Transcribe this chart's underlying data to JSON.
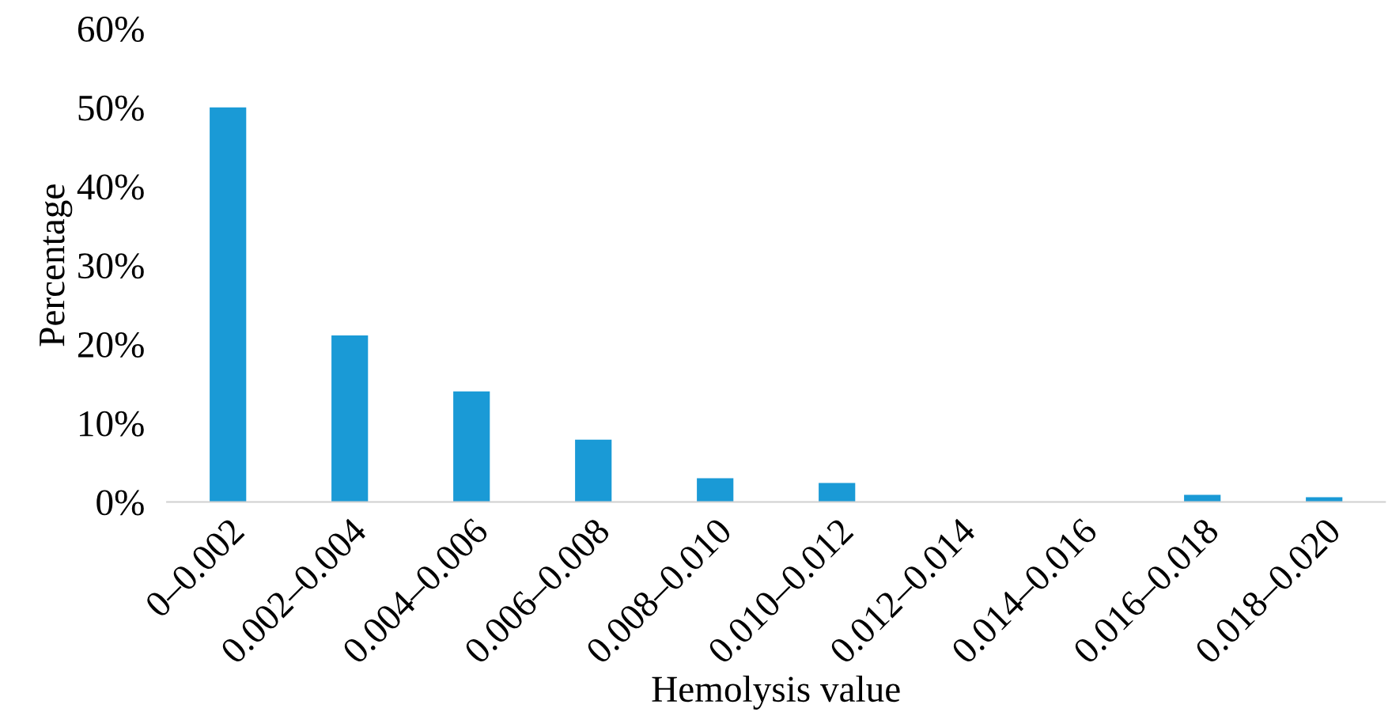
{
  "chart_data": {
    "type": "bar",
    "xlabel": "Hemolysis value",
    "ylabel": "Percentage",
    "categories": [
      "0–0.002",
      "0.002–0.004",
      "0.004–0.006",
      "0.006–0.008",
      "0.008–0.010",
      "0.010–0.012",
      "0.012–0.014",
      "0.014–0.016",
      "0.016–0.018",
      "0.018–0.020"
    ],
    "values": [
      50,
      21.1,
      14.0,
      7.9,
      3.0,
      2.4,
      0,
      0,
      0.9,
      0.6
    ],
    "color": "#1a9ad6",
    "ylim": [
      0,
      60
    ],
    "yticks": [
      {
        "value": 0,
        "label": "0%"
      },
      {
        "value": 10,
        "label": "10%"
      },
      {
        "value": 20,
        "label": "20%"
      },
      {
        "value": 30,
        "label": "30%"
      },
      {
        "value": 40,
        "label": "40%"
      },
      {
        "value": 50,
        "label": "50%"
      },
      {
        "value": 60,
        "label": "60%"
      }
    ],
    "grid": false,
    "legend": false
  }
}
